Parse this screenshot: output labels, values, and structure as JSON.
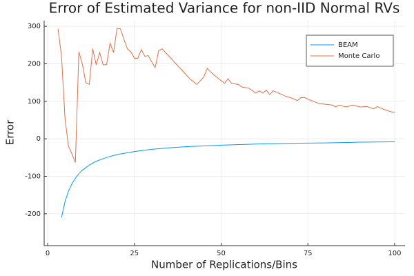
{
  "chart_data": {
    "type": "line",
    "title": "Error of Estimated Variance for non-IID Normal RVs",
    "x_label": "Number of Replications/Bins",
    "y_label": "Error",
    "xlim": [
      -1,
      103
    ],
    "ylim": [
      -285,
      315
    ],
    "xticks": [
      0,
      25,
      50,
      75,
      100
    ],
    "yticks": [
      -200,
      -100,
      0,
      100,
      200,
      300
    ],
    "grid": true,
    "legend": "top-right",
    "series": [
      {
        "name": "BEAM",
        "color": "#009af9",
        "x": [
          4,
          5,
          6,
          7,
          8,
          9,
          10,
          12,
          14,
          16,
          18,
          20,
          25,
          30,
          35,
          40,
          45,
          50,
          60,
          70,
          80,
          90,
          100
        ],
        "values": [
          -210,
          -168,
          -140,
          -120,
          -105,
          -93,
          -84,
          -70,
          -60,
          -53,
          -47,
          -42,
          -34,
          -28,
          -24,
          -21,
          -19,
          -17,
          -14,
          -12,
          -11,
          -9,
          -8
        ]
      },
      {
        "name": "Monte Carlo",
        "color": "#e26f46",
        "x": [
          3,
          4,
          5,
          6,
          7,
          8,
          9,
          10,
          11,
          12,
          13,
          14,
          15,
          16,
          17,
          18,
          19,
          20,
          21,
          22,
          23,
          24,
          25,
          26,
          27,
          28,
          29,
          30,
          31,
          32,
          33,
          35,
          37,
          39,
          41,
          43,
          44,
          45,
          46,
          47,
          48,
          50,
          51,
          52,
          53,
          55,
          56,
          58,
          60,
          61,
          62,
          63,
          64,
          65,
          67,
          69,
          70,
          72,
          73,
          74,
          76,
          78,
          80,
          82,
          83,
          84,
          86,
          88,
          90,
          92,
          94,
          95,
          97,
          99,
          100
        ],
        "values": [
          293,
          220,
          55,
          -20,
          -40,
          -63,
          232,
          200,
          150,
          145,
          240,
          197,
          230,
          197,
          198,
          255,
          230,
          295,
          293,
          265,
          240,
          232,
          215,
          215,
          238,
          220,
          222,
          205,
          190,
          235,
          240,
          220,
          200,
          180,
          160,
          145,
          155,
          165,
          188,
          178,
          170,
          155,
          148,
          160,
          148,
          145,
          138,
          135,
          122,
          128,
          122,
          130,
          118,
          128,
          120,
          112,
          110,
          102,
          110,
          110,
          102,
          95,
          92,
          90,
          85,
          90,
          85,
          90,
          85,
          86,
          80,
          86,
          78,
          72,
          71
        ]
      }
    ]
  }
}
